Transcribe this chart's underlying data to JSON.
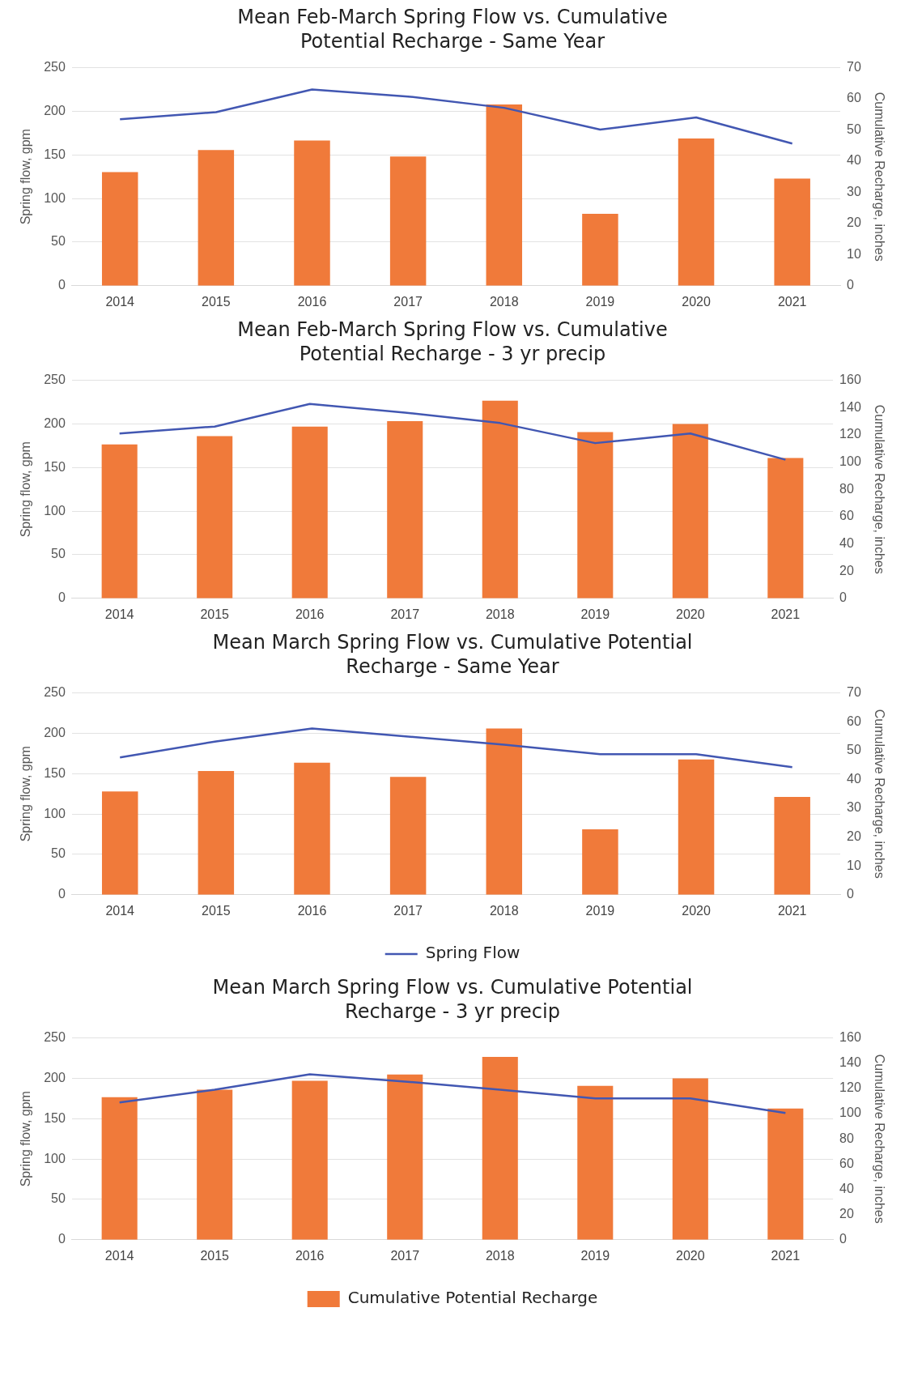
{
  "chart_data": [
    {
      "type": "bar",
      "title": "Mean Feb-March Spring Flow vs. Cumulative Potential Recharge - Same Year",
      "ylabel": "Spring flow, gpm",
      "y2label": "Cumulative Recharge, inches",
      "categories": [
        "2014",
        "2015",
        "2016",
        "2017",
        "2018",
        "2019",
        "2020",
        "2021"
      ],
      "series": [
        {
          "axis": "y2",
          "color": "#f07a3a",
          "values": [
            36.5,
            43.6,
            46.6,
            41.5,
            58.2,
            23.1,
            47.3,
            34.4
          ]
        },
        {
          "type": "line",
          "color": "#4257b2",
          "values": [
            191,
            199,
            225,
            217,
            204,
            179,
            193,
            163
          ]
        }
      ],
      "ylim": [
        0,
        250
      ],
      "yticks": [
        0,
        50,
        100,
        150,
        200,
        250
      ],
      "y2lim": [
        0,
        70
      ],
      "y2ticks": [
        0,
        10,
        20,
        30,
        40,
        50,
        60,
        70
      ],
      "grid": "y",
      "marker": "none",
      "legend": false
    },
    {
      "type": "bar",
      "title": "Mean Feb-March Spring Flow vs. Cumulative Potential Recharge - 3 yr precip",
      "ylabel": "Spring flow, gpm",
      "y2label": "Cumulative Recharge, inches",
      "categories": [
        "2014",
        "2015",
        "2016",
        "2017",
        "2018",
        "2019",
        "2020",
        "2021"
      ],
      "series": [
        {
          "axis": "y2",
          "color": "#f07a3a",
          "values": [
            113,
            119,
            126,
            130,
            145,
            122,
            128,
            103
          ]
        },
        {
          "type": "line",
          "color": "#4257b2",
          "values": [
            189,
            197,
            223,
            213,
            201,
            178,
            189,
            159
          ]
        }
      ],
      "ylim": [
        0,
        250
      ],
      "yticks": [
        0,
        50,
        100,
        150,
        200,
        250
      ],
      "y2lim": [
        0,
        160
      ],
      "y2ticks": [
        0,
        20,
        40,
        60,
        80,
        100,
        120,
        140,
        160
      ],
      "grid": "y",
      "marker": "none",
      "legend": false
    },
    {
      "type": "bar",
      "title": "Mean March Spring Flow vs. Cumulative Potential Recharge - Same Year",
      "ylabel": "Spring flow, gpm",
      "y2label": "Cumulative Recharge, inches",
      "categories": [
        "2014",
        "2015",
        "2016",
        "2017",
        "2018",
        "2019",
        "2020",
        "2021"
      ],
      "series": [
        {
          "axis": "y2",
          "color": "#f07a3a",
          "values": [
            35.8,
            42.9,
            45.8,
            40.9,
            57.7,
            22.7,
            46.9,
            33.9
          ]
        },
        {
          "type": "line",
          "name": "Spring Flow",
          "color": "#4257b2",
          "values": [
            170,
            190,
            206,
            196,
            186,
            174,
            174,
            158
          ]
        }
      ],
      "ylim": [
        0,
        250
      ],
      "yticks": [
        0,
        50,
        100,
        150,
        200,
        250
      ],
      "y2lim": [
        0,
        70
      ],
      "y2ticks": [
        0,
        10,
        20,
        30,
        40,
        50,
        60,
        70
      ],
      "grid": "y",
      "marker": "none",
      "legend": "bottom"
    },
    {
      "type": "bar",
      "title": "Mean March Spring Flow vs. Cumulative Potential Recharge - 3 yr precip",
      "ylabel": "Spring flow, gpm",
      "y2label": "Cumulative Recharge, inches",
      "categories": [
        "2014",
        "2015",
        "2016",
        "2017",
        "2018",
        "2019",
        "2020",
        "2021"
      ],
      "series": [
        {
          "axis": "y2",
          "name": "Cumulative Potential Recharge",
          "color": "#f07a3a",
          "values": [
            113,
            119,
            126,
            131,
            145,
            122,
            128,
            104
          ]
        },
        {
          "type": "line",
          "color": "#4257b2",
          "values": [
            170,
            186,
            205,
            196,
            186,
            175,
            175,
            157
          ]
        }
      ],
      "ylim": [
        0,
        250
      ],
      "yticks": [
        0,
        50,
        100,
        150,
        200,
        250
      ],
      "y2lim": [
        0,
        160
      ],
      "y2ticks": [
        0,
        20,
        40,
        60,
        80,
        100,
        120,
        140,
        160
      ],
      "grid": "y",
      "marker": "none",
      "legend": "bottom"
    }
  ]
}
